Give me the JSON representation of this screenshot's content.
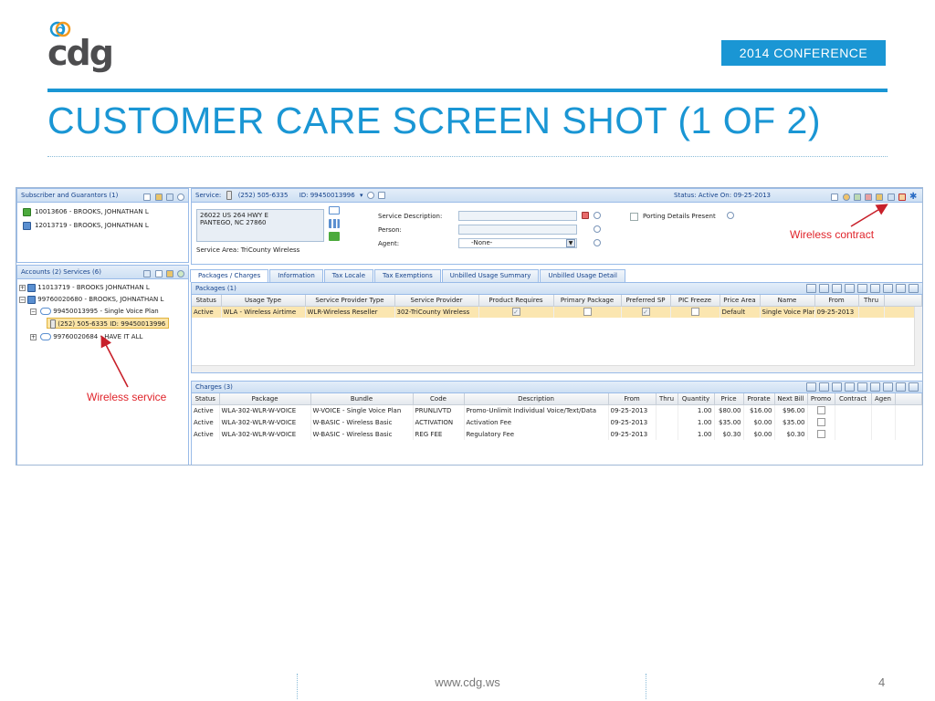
{
  "slide": {
    "logo_text": "cdg",
    "conference_badge": "2014 CONFERENCE",
    "title": "CUSTOMER CARE SCREEN SHOT (1 OF 2)",
    "footer_url": "www.cdg.ws",
    "page_number": "4"
  },
  "annotations": {
    "wireless_contract": "Wireless contract",
    "wireless_service": "Wireless service"
  },
  "colors": {
    "brand_blue": "#1a96d4",
    "annotation_red": "#e0242b",
    "selected_row": "#fbe6b0"
  },
  "subscriber_panel": {
    "title": "Subscriber and Guarantors (1)",
    "items": [
      {
        "icon": "green-account-icon",
        "label": "10013606 - BROOKS, JOHNATHAN L"
      },
      {
        "icon": "guarantor-card-icon",
        "label": "12013719 - BROOKS, JOHNATHAN L"
      }
    ]
  },
  "accounts_panel": {
    "title": "Accounts (2) Services (6)",
    "tree": [
      {
        "label": "11013719 - BROOKS JOHNATHAN L"
      },
      {
        "label": "99760020680 - BROOKS, JOHNATHAN L"
      },
      {
        "label": "99450013995 - Single Voice Plan"
      },
      {
        "label": "(252) 505-6335 ID: 99450013996"
      },
      {
        "label": "99760020684 - HAVE IT ALL"
      }
    ]
  },
  "service_header": {
    "service_label": "Service:",
    "phone": "(252) 505-6335",
    "id_text": "ID: 99450013996",
    "status_text": "Status: Active   On: 09-25-2013"
  },
  "service_details": {
    "address_line1": "26022 US 264 HWY E",
    "address_line2": "PANTEGO, NC  27860",
    "service_area": "Service Area: TriCounty Wireless",
    "service_description_label": "Service Description:",
    "person_label": "Person:",
    "agent_label": "Agent:",
    "agent_value": "-None-",
    "porting_label": "Porting Details Present"
  },
  "tabs": [
    {
      "label": "Packages / Charges"
    },
    {
      "label": "Information"
    },
    {
      "label": "Tax Locale"
    },
    {
      "label": "Tax Exemptions"
    },
    {
      "label": "Unbilled Usage Summary"
    },
    {
      "label": "Unbilled Usage Detail"
    }
  ],
  "packages": {
    "title": "Packages (1)",
    "columns": [
      "Status",
      "Usage Type",
      "Service Provider Type",
      "Service Provider",
      "Product Requires",
      "Primary Package",
      "Preferred SP",
      "PIC Freeze",
      "Price Area",
      "Name",
      "From",
      "Thru"
    ],
    "rows": [
      {
        "status": "Active",
        "usage_type": "WLA - Wireless Airtime",
        "sp_type": "WLR-Wireless Reseller",
        "sp": "302-TriCounty Wireless",
        "product_requires": true,
        "primary_package": false,
        "preferred_sp": true,
        "pic_freeze": false,
        "price_area": "Default",
        "name": "Single Voice Plan",
        "from": "09-25-2013",
        "thru": ""
      }
    ]
  },
  "charges": {
    "title": "Charges (3)",
    "columns": [
      "Status",
      "Package",
      "Bundle",
      "Code",
      "Description",
      "From",
      "Thru",
      "Quantity",
      "Price",
      "Prorate",
      "Next Bill",
      "Promo",
      "Contract",
      "Agen"
    ],
    "rows": [
      {
        "status": "Active",
        "package": "WLA-302-WLR-W-VOICE",
        "bundle": "W-VOICE - Single Voice Plan",
        "code": "PRUNLIVTD",
        "description": "Promo-Unlimit Individual Voice/Text/Data",
        "from": "09-25-2013",
        "thru": "",
        "quantity": "1.00",
        "price": "$80.00",
        "prorate": "$16.00",
        "next_bill": "$96.00"
      },
      {
        "status": "Active",
        "package": "WLA-302-WLR-W-VOICE",
        "bundle": "W-BASIC - Wireless Basic",
        "code": "ACTIVATION",
        "description": "Activation Fee",
        "from": "09-25-2013",
        "thru": "",
        "quantity": "1.00",
        "price": "$35.00",
        "prorate": "$0.00",
        "next_bill": "$35.00"
      },
      {
        "status": "Active",
        "package": "WLA-302-WLR-W-VOICE",
        "bundle": "W-BASIC - Wireless Basic",
        "code": "REG FEE",
        "description": "Regulatory Fee",
        "from": "09-25-2013",
        "thru": "",
        "quantity": "1.00",
        "price": "$0.30",
        "prorate": "$0.00",
        "next_bill": "$0.30"
      }
    ]
  }
}
